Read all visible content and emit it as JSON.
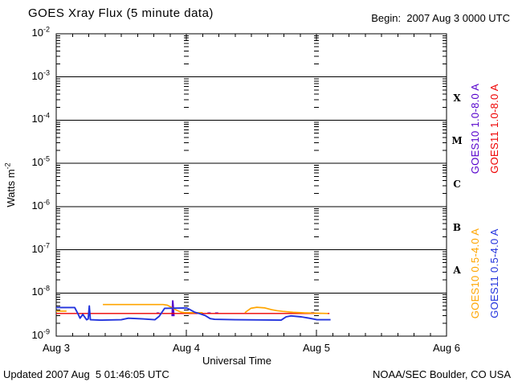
{
  "header": {
    "title": "GOES Xray Flux (5 minute data)",
    "begin": "Begin:  2007 Aug 3 0000 UTC"
  },
  "footer": {
    "updated": "Updated 2007 Aug  5 01:46:05 UTC",
    "credit": "NOAA/SEC Boulder, CO USA"
  },
  "chart_data": {
    "type": "line",
    "title": "GOES Xray Flux (5 minute data)",
    "begin_label": "Begin:  2007 Aug 3 0000 UTC",
    "xlabel": "Universal Time",
    "ylabel_base": "Watts m",
    "ylabel_exp": "-2",
    "x_axis": {
      "start": "2007 Aug 3 0000 UTC",
      "span_hours": 72,
      "minor_tick_hours": 3,
      "major_tick_hours": 24,
      "day_labels": [
        {
          "label": "Aug 3",
          "hour": 0
        },
        {
          "label": "Aug 4",
          "hour": 24
        },
        {
          "label": "Aug 5",
          "hour": 48
        },
        {
          "label": "Aug 6",
          "hour": 72
        }
      ],
      "gridline_hours": [
        24,
        48
      ]
    },
    "y_axis": {
      "scale": "log",
      "ylim": [
        1e-09,
        0.01
      ],
      "decade_exponents": [
        -2,
        -3,
        -4,
        -5,
        -6,
        -7,
        -8,
        -9
      ],
      "gridlines_at_exponents": [
        -3,
        -4,
        -5,
        -6,
        -7,
        -8
      ]
    },
    "flare_classes": [
      {
        "label": "X",
        "mid_exponent": -3.5
      },
      {
        "label": "M",
        "mid_exponent": -4.5
      },
      {
        "label": "C",
        "mid_exponent": -5.5
      },
      {
        "label": "B",
        "mid_exponent": -6.5
      },
      {
        "label": "A",
        "mid_exponent": -7.5
      }
    ],
    "series": [
      {
        "name": "GOES10 1.0-8.0 A",
        "color": "#5500cc",
        "width": 2,
        "label_column": 0,
        "label_band": "upper",
        "segments": [
          [
            [
              18.5,
              3.4e-09
            ],
            [
              19.0,
              3.4e-09
            ]
          ],
          [
            [
              21.4,
              2.9e-09
            ],
            [
              21.5,
              6.5e-09
            ],
            [
              21.7,
              2.9e-09
            ]
          ],
          [
            [
              24.4,
              3.4e-09
            ],
            [
              25.2,
              3.4e-09
            ]
          ],
          [
            [
              26.4,
              3.4e-09
            ],
            [
              27.0,
              3.4e-09
            ]
          ],
          [
            [
              27.9,
              3.4e-09
            ],
            [
              28.5,
              3.4e-09
            ]
          ],
          [
            [
              29.3,
              3.4e-09
            ],
            [
              29.9,
              3.4e-09
            ]
          ],
          [
            [
              47.0,
              3.45e-09
            ],
            [
              47.6,
              3.45e-09
            ]
          ]
        ]
      },
      {
        "name": "GOES11 1.0-8.0 A",
        "color": "#ee0000",
        "width": 1.4,
        "label_column": 1,
        "label_band": "upper",
        "segments": [
          [
            [
              0,
              3.35e-09
            ],
            [
              50.4,
              3.35e-09
            ]
          ]
        ]
      },
      {
        "name": "GOES10 0.5-4.0 A",
        "color": "#ffa500",
        "width": 1.7,
        "label_column": 0,
        "label_band": "lower",
        "segments": [
          [
            [
              0,
              3.8e-09
            ],
            [
              1.9,
              3.8e-09
            ]
          ],
          [
            [
              8.6,
              5.4e-09
            ],
            [
              19.7,
              5.4e-09
            ],
            [
              20.5,
              5.2e-09
            ],
            [
              21.3,
              4.6e-09
            ],
            [
              22.2,
              4e-09
            ],
            [
              23.0,
              3.6e-09
            ],
            [
              23.7,
              3.5e-09
            ],
            [
              27.0,
              3.5e-09
            ]
          ],
          [
            [
              34.8,
              3.5e-09
            ],
            [
              35.9,
              4.4e-09
            ],
            [
              37.0,
              4.65e-09
            ],
            [
              38.5,
              4.5e-09
            ],
            [
              39.7,
              4.1e-09
            ],
            [
              40.7,
              3.9e-09
            ],
            [
              41.8,
              3.75e-09
            ],
            [
              43.7,
              3.55e-09
            ],
            [
              45.9,
              3.45e-09
            ],
            [
              48.1,
              3.4e-09
            ],
            [
              50.1,
              3.35e-09
            ]
          ]
        ]
      },
      {
        "name": "GOES11 0.5-4.0 A",
        "color": "#2233dd",
        "width": 1.9,
        "label_column": 1,
        "label_band": "lower",
        "segments": [
          [
            [
              0,
              4.6e-09
            ],
            [
              3.4,
              4.6e-09
            ],
            [
              4.0,
              3.3e-09
            ],
            [
              4.4,
              2.6e-09
            ],
            [
              4.9,
              3.2e-09
            ],
            [
              5.6,
              2.4e-09
            ],
            [
              5.9,
              2.5e-09
            ],
            [
              6.1,
              5e-09
            ],
            [
              6.3,
              2.4e-09
            ],
            [
              8.0,
              2.35e-09
            ],
            [
              12.0,
              2.4e-09
            ],
            [
              13.3,
              2.6e-09
            ],
            [
              16.0,
              2.5e-09
            ],
            [
              18.2,
              2.4e-09
            ],
            [
              19.0,
              2.9e-09
            ],
            [
              20.0,
              4.4e-09
            ],
            [
              24.1,
              4.5e-09
            ],
            [
              25.5,
              3.6e-09
            ],
            [
              26.5,
              3.3e-09
            ],
            [
              27.5,
              3e-09
            ],
            [
              28.4,
              2.55e-09
            ],
            [
              29.2,
              2.45e-09
            ],
            [
              33.0,
              2.4e-09
            ],
            [
              41.5,
              2.35e-09
            ],
            [
              42.4,
              2.8e-09
            ],
            [
              43.3,
              2.95e-09
            ],
            [
              45.2,
              2.8e-09
            ],
            [
              46.7,
              2.6e-09
            ],
            [
              48.1,
              2.4e-09
            ],
            [
              50.6,
              2.4e-09
            ]
          ]
        ]
      }
    ]
  }
}
